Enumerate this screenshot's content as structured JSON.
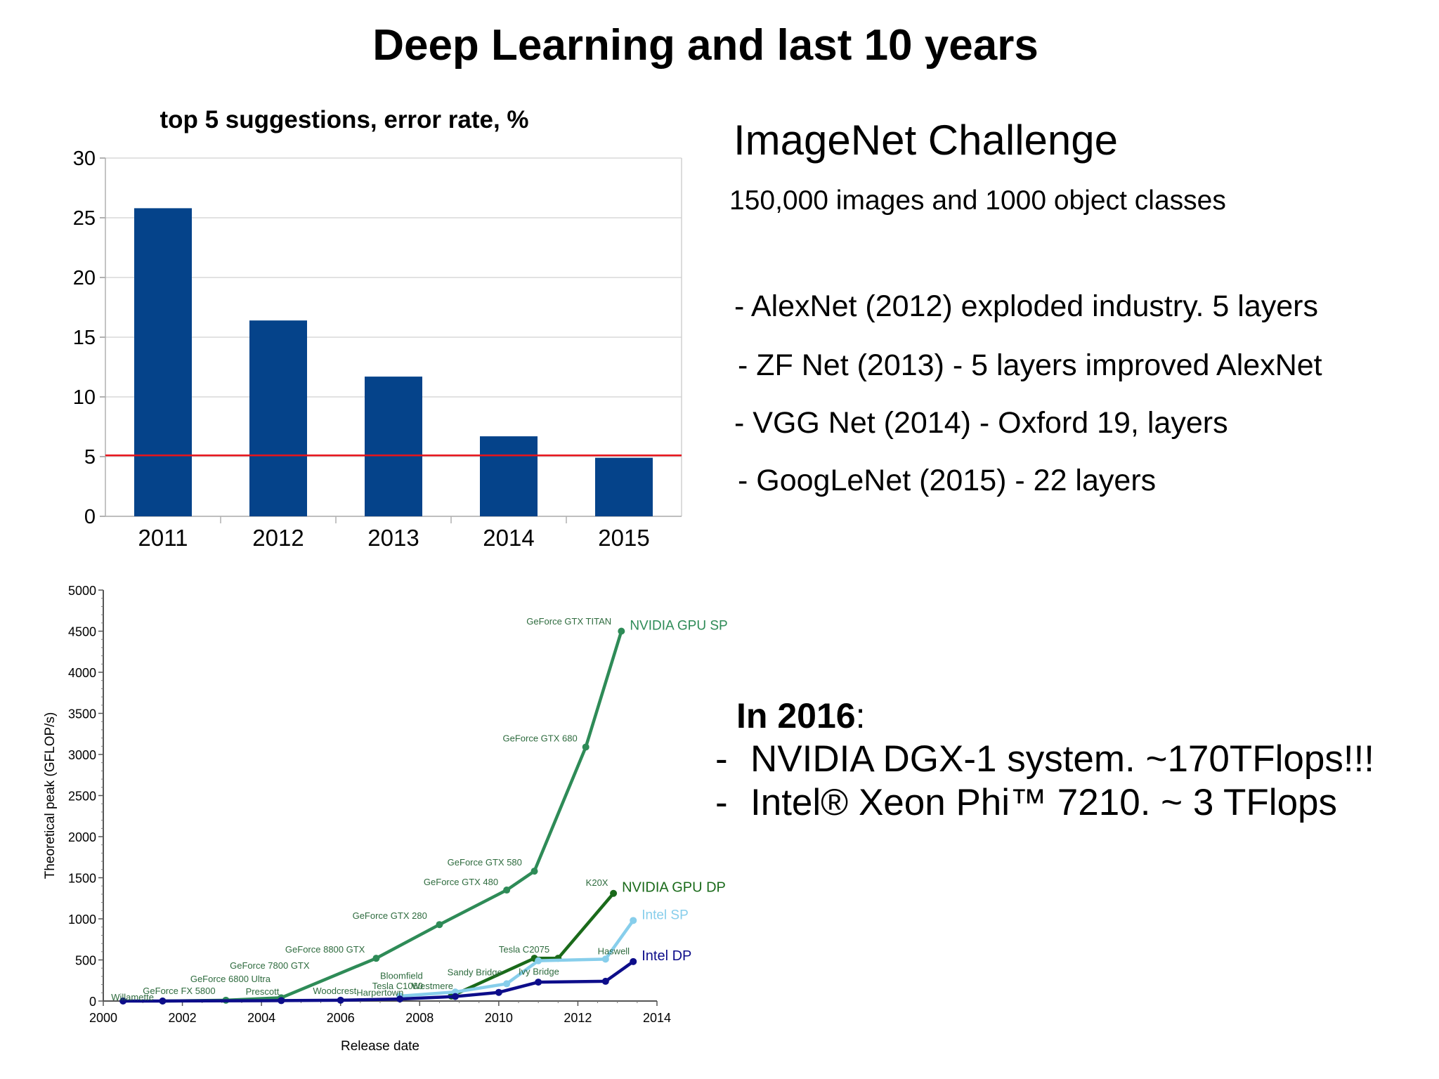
{
  "slide": {
    "title": "Deep Learning and last 10 years"
  },
  "imagenet": {
    "title": "ImageNet Challenge",
    "subtitle": "150,000 images and 1000 object classes",
    "bullets": [
      "- AlexNet (2012) exploded industry. 5 layers",
      "- ZF Net (2013) - 5 layers improved AlexNet",
      "- VGG Net (2014) - Oxford 19, layers",
      "- GoogLeNet (2015) - 22 layers"
    ]
  },
  "year2016": {
    "heading": "In 2016",
    "colon": ":",
    "dash": "-",
    "items": [
      "NVIDIA DGX-1 system. ~170TFlops!!!",
      "Intel® Xeon Phi™ 7210. ~ 3 TFlops"
    ]
  },
  "colors": {
    "bar": "#05438a",
    "threshold": "#e8141b",
    "nvidia_sp": "#2e8b57",
    "nvidia_dp": "#1a6a1a",
    "intel_sp": "#87ceeb",
    "intel_dp": "#0d0d8a"
  },
  "chart_data": [
    {
      "type": "bar",
      "title": "top 5 suggestions, error rate, %",
      "categories": [
        "2011",
        "2012",
        "2013",
        "2014",
        "2015"
      ],
      "values": [
        25.8,
        16.4,
        11.7,
        6.7,
        4.9
      ],
      "ylim": [
        0,
        30
      ],
      "yticks": [
        0,
        5,
        10,
        15,
        20,
        25,
        30
      ],
      "reference_line": 5.1,
      "grid": true,
      "legend": "none"
    },
    {
      "type": "line",
      "xlabel": "Release date",
      "ylabel": "Theoretical peak (GFLOP/s)",
      "xlim": [
        2000,
        2014
      ],
      "ylim": [
        0,
        5000
      ],
      "xticks": [
        2000,
        2002,
        2004,
        2006,
        2008,
        2010,
        2012,
        2014
      ],
      "yticks": [
        0,
        500,
        1000,
        1500,
        2000,
        2500,
        3000,
        3500,
        4000,
        4500,
        5000
      ],
      "series": [
        {
          "name": "NVIDIA GPU SP",
          "x": [
            2001.5,
            2003.1,
            2004.5,
            2006.9,
            2008.5,
            2010.2,
            2010.9,
            2012.2,
            2013.1
          ],
          "y": [
            0,
            10,
            40,
            520,
            930,
            1350,
            1580,
            3090,
            4500
          ]
        },
        {
          "name": "NVIDIA GPU DP",
          "x": [
            2008.8,
            2010.9,
            2011.5,
            2012.9
          ],
          "y": [
            60,
            520,
            520,
            1310
          ]
        },
        {
          "name": "Intel SP",
          "x": [
            2007.5,
            2008.9,
            2010.2,
            2011.0,
            2012.7,
            2013.4
          ],
          "y": [
            60,
            110,
            210,
            490,
            510,
            980
          ]
        },
        {
          "name": "Intel DP",
          "x": [
            2000.5,
            2001.5,
            2004.5,
            2006.0,
            2007.5,
            2008.9,
            2010.0,
            2011.0,
            2012.7,
            2013.4
          ],
          "y": [
            0,
            0,
            5,
            10,
            25,
            55,
            105,
            230,
            240,
            480
          ]
        }
      ],
      "annotations": [
        {
          "text": "Willamette",
          "x": 2000.2,
          "y": 10
        },
        {
          "text": "GeForce FX 5800",
          "x": 2001.0,
          "y": 85
        },
        {
          "text": "GeForce 6800 Ultra",
          "x": 2002.2,
          "y": 230
        },
        {
          "text": "GeForce 7800 GTX",
          "x": 2003.2,
          "y": 395
        },
        {
          "text": "Prescott",
          "x": 2003.6,
          "y": 75
        },
        {
          "text": "GeForce 8800 GTX",
          "x": 2004.6,
          "y": 590
        },
        {
          "text": "Woodcrest",
          "x": 2005.3,
          "y": 85
        },
        {
          "text": "Harpertown",
          "x": 2006.4,
          "y": 65
        },
        {
          "text": "Tesla C1060",
          "x": 2006.8,
          "y": 145
        },
        {
          "text": "Westmere",
          "x": 2007.8,
          "y": 145
        },
        {
          "text": "Bloomfield",
          "x": 2007.0,
          "y": 270
        },
        {
          "text": "Sandy Bridge",
          "x": 2008.7,
          "y": 310
        },
        {
          "text": "Ivy Bridge",
          "x": 2010.5,
          "y": 320
        },
        {
          "text": "Tesla C2075",
          "x": 2010.0,
          "y": 590
        },
        {
          "text": "Haswell",
          "x": 2012.5,
          "y": 570
        },
        {
          "text": "GeForce GTX 280",
          "x": 2006.3,
          "y": 1000
        },
        {
          "text": "GeForce GTX 480",
          "x": 2008.1,
          "y": 1410
        },
        {
          "text": "GeForce GTX 580",
          "x": 2008.7,
          "y": 1650
        },
        {
          "text": "GeForce GTX 680",
          "x": 2010.1,
          "y": 3160
        },
        {
          "text": "GeForce GTX TITAN",
          "x": 2010.7,
          "y": 4580
        },
        {
          "text": "K20X",
          "x": 2012.2,
          "y": 1400
        }
      ]
    }
  ]
}
